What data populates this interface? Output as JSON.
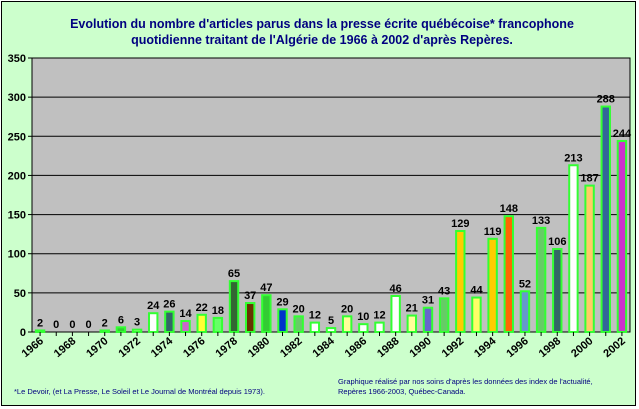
{
  "chart_data": {
    "type": "bar",
    "title_line1": "Evolution du nombre d'articles parus dans la presse écrite québécoise* francophone",
    "title_line2": "quotidienne traitant de l'Algérie de 1966 à 2002 d'après Repères.",
    "xlabel": "",
    "ylabel": "",
    "ylim": [
      0,
      350
    ],
    "ytick_step": 50,
    "x_tick_labels": [
      "1966",
      "1968",
      "1970",
      "1972",
      "1974",
      "1976",
      "1978",
      "1980",
      "1982",
      "1984",
      "1986",
      "1988",
      "1990",
      "1992",
      "1994",
      "1996",
      "1998",
      "2000",
      "2002"
    ],
    "categories": [
      "1966",
      "1967",
      "1968",
      "1969",
      "1970",
      "1971",
      "1972",
      "1973",
      "1974",
      "1975",
      "1976",
      "1977",
      "1978",
      "1979",
      "1980",
      "1981",
      "1982",
      "1983",
      "1984",
      "1985",
      "1986",
      "1987",
      "1988",
      "1989",
      "1990",
      "1991",
      "1992",
      "1993",
      "1994",
      "1995",
      "1996",
      "1997",
      "1998",
      "1999",
      "2000",
      "2001",
      "2002"
    ],
    "values": [
      2,
      0,
      0,
      0,
      2,
      6,
      3,
      24,
      26,
      14,
      22,
      18,
      65,
      37,
      47,
      29,
      20,
      12,
      5,
      20,
      10,
      12,
      46,
      21,
      31,
      43,
      129,
      44,
      119,
      148,
      52,
      133,
      106,
      213,
      187,
      288,
      244
    ],
    "bar_fill": [
      "#33cc33",
      "#33cc33",
      "#33cc33",
      "#33cc33",
      "#ffffff",
      "#33cc33",
      "#ccff99",
      "#ffffff",
      "#336666",
      "#cc66cc",
      "#ffff33",
      "#66ff66",
      "#336633",
      "#663300",
      "#33cc33",
      "#0033cc",
      "#66cc66",
      "#ffffff",
      "#ffffff",
      "#ffff99",
      "#ffffff",
      "#ffffff",
      "#ffffff",
      "#ffff99",
      "#6666cc",
      "#66cc66",
      "#ffcc00",
      "#ffff66",
      "#ffcc00",
      "#ff6600",
      "#6699cc",
      "#66cc66",
      "#336666",
      "#ffffff",
      "#ffcc66",
      "#336699",
      "#cc33cc"
    ],
    "bar_edge": "#33ff33",
    "plot_bg": "#c0c0c0",
    "grid": true,
    "legend": "none"
  },
  "footnote_left": "*Le Devoir, (et La Presse, Le Soleil et Le Journal de Montréal depuis 1973).",
  "footnote_right_1": "Graphique réalisé par nos soins d'après les données des index de l'actualité,",
  "footnote_right_2": "Repères 1966-2003, Québec-Canada."
}
